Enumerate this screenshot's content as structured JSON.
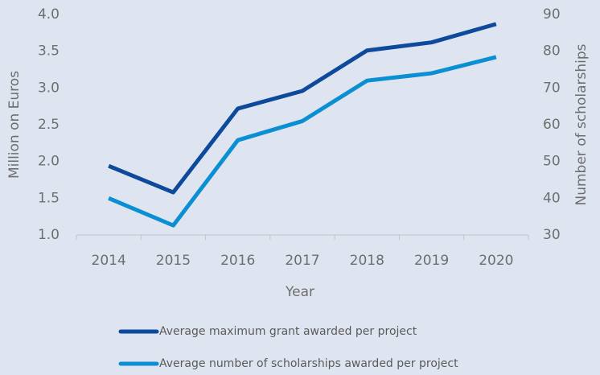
{
  "chart_data": {
    "type": "line",
    "xlabel": "Year",
    "ylabel": "Million on Euros",
    "y2label": "Number of scholarships",
    "categories": [
      "2014",
      "2015",
      "2016",
      "2017",
      "2018",
      "2019",
      "2020"
    ],
    "series": [
      {
        "name": "Average maximum grant awarded per project",
        "color": "#0d4a9b",
        "values": [
          1.94,
          1.58,
          2.72,
          2.96,
          3.51,
          3.62,
          3.87
        ]
      },
      {
        "name": "Average number of scholarships awarded per project",
        "color": "#0a8fd2",
        "axis": "y2",
        "values": [
          40,
          32.6,
          55.8,
          61,
          72,
          74,
          78.4
        ]
      }
    ],
    "ylim": [
      1,
      4
    ],
    "yticks": [
      {
        "value": 1,
        "label": "1.0"
      },
      1.5,
      {
        "value": 2,
        "label": "2.0"
      },
      2.5,
      {
        "value": 3,
        "label": "3.0"
      },
      3.5,
      {
        "value": 4,
        "label": "4.0"
      }
    ],
    "y2lim": [
      30,
      90
    ],
    "y2ticks": [
      30,
      40,
      50,
      60,
      70,
      80,
      90
    ],
    "legend": "bottom"
  }
}
